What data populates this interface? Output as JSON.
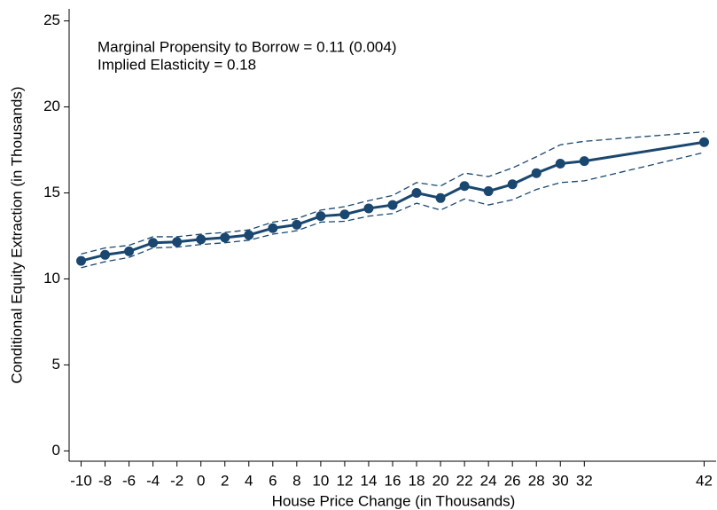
{
  "chart_data": {
    "type": "line",
    "x_label": "House Price Change (in Thousands)",
    "y_label": "Conditional Equity Extraction (in Thousands)",
    "annotations": [
      "Marginal Propensity to Borrow = 0.11 (0.004)",
      "Implied Elasticity = 0.18"
    ],
    "x": [
      -10,
      -8,
      -6,
      -4,
      -2,
      0,
      2,
      4,
      6,
      8,
      10,
      12,
      14,
      16,
      18,
      20,
      22,
      24,
      26,
      28,
      30,
      32,
      42
    ],
    "series": [
      {
        "color": "#1a476f",
        "markers": true,
        "dashed": false,
        "values": [
          11.05,
          11.4,
          11.6,
          12.1,
          12.15,
          12.3,
          12.4,
          12.55,
          12.95,
          13.15,
          13.65,
          13.75,
          14.1,
          14.3,
          15.0,
          14.7,
          15.4,
          15.1,
          15.5,
          16.15,
          16.7,
          16.85,
          17.95
        ]
      },
      {
        "color": "#1a476f",
        "markers": false,
        "dashed": true,
        "values": [
          11.45,
          11.8,
          11.95,
          12.45,
          12.45,
          12.6,
          12.7,
          12.85,
          13.3,
          13.5,
          14.0,
          14.2,
          14.55,
          14.85,
          15.6,
          15.4,
          16.15,
          15.95,
          16.45,
          17.1,
          17.8,
          18.0,
          18.55
        ]
      },
      {
        "color": "#1a476f",
        "markers": false,
        "dashed": true,
        "values": [
          10.65,
          11.0,
          11.25,
          11.8,
          11.85,
          12.0,
          12.1,
          12.25,
          12.6,
          12.8,
          13.3,
          13.35,
          13.65,
          13.8,
          14.4,
          14.0,
          14.65,
          14.3,
          14.6,
          15.2,
          15.6,
          15.7,
          17.35
        ]
      }
    ],
    "xlim": [
      -11,
      43
    ],
    "xticks": [
      -10,
      -8,
      -6,
      -4,
      -2,
      0,
      2,
      4,
      6,
      8,
      10,
      12,
      14,
      16,
      18,
      20,
      22,
      24,
      26,
      28,
      30,
      32,
      42
    ],
    "ylim": [
      -0.6,
      25.7
    ],
    "yticks": [
      0,
      5,
      10,
      15,
      20,
      25
    ],
    "grid": false
  }
}
